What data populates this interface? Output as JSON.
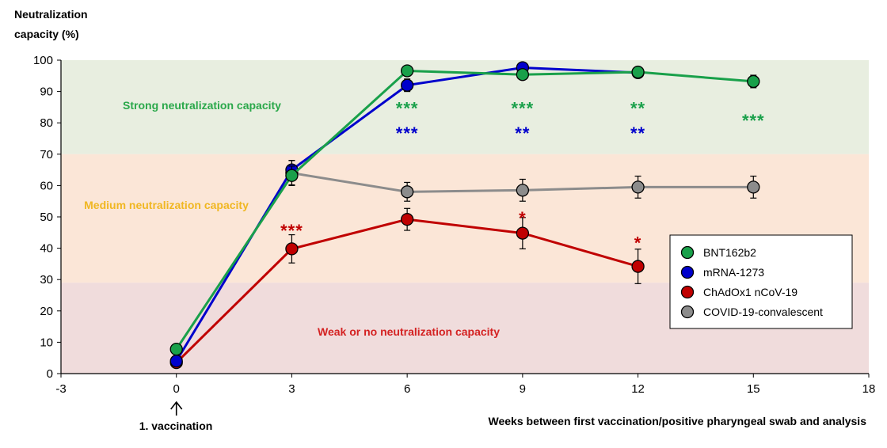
{
  "chart_data": {
    "type": "line",
    "ylabel_lines": [
      "Neutralization",
      "capacity (%)"
    ],
    "xlabel": "Weeks between first vaccination/positive pharyngeal swab and analysis",
    "xlim": [
      -3,
      18
    ],
    "ylim": [
      0,
      100
    ],
    "x_ticks": [
      -3,
      0,
      3,
      6,
      9,
      12,
      15,
      18
    ],
    "y_ticks": [
      0,
      10,
      20,
      30,
      40,
      50,
      60,
      70,
      80,
      90,
      100
    ],
    "grid": false,
    "legend_position": "right",
    "zones": [
      {
        "label": "Strong neutralization capacity",
        "y_from": 70,
        "y_to": 100,
        "fill": "#e8eee0",
        "text_color": "#2aa84a"
      },
      {
        "label": "Medium neutralization capacity",
        "y_from": 29,
        "y_to": 70,
        "fill": "#fbe6d7",
        "text_color": "#f0b722"
      },
      {
        "label": "Weak or no neutralization capacity",
        "y_from": 0,
        "y_to": 29,
        "fill": "#f0dcdc",
        "text_color": "#d42222"
      }
    ],
    "series": [
      {
        "name": "COVID-19-convalescent",
        "color": "#8c8c8c",
        "x": [
          3,
          6,
          9,
          12,
          15
        ],
        "y": [
          64,
          58,
          58.5,
          59.5,
          59.5
        ],
        "err": [
          4,
          3,
          3.5,
          3.5,
          3.5
        ]
      },
      {
        "name": "ChAdOx1 nCoV-19",
        "color": "#c00000",
        "x": [
          0,
          3,
          6,
          9,
          12
        ],
        "y": [
          3.5,
          39.8,
          49.2,
          44.8,
          34.2
        ],
        "err": [
          0,
          4.5,
          3.5,
          5,
          5.5
        ]
      },
      {
        "name": "mRNA-1273",
        "color": "#0000cc",
        "x": [
          0,
          3,
          6,
          9,
          12
        ],
        "y": [
          4,
          65,
          92,
          97.6,
          96
        ],
        "err": [
          0,
          3,
          2,
          0,
          0
        ]
      },
      {
        "name": "BNT162b2",
        "color": "#19a04a",
        "x": [
          0,
          3,
          6,
          9,
          12,
          15
        ],
        "y": [
          7.8,
          63.2,
          96.6,
          95.4,
          96.2,
          93.2
        ],
        "err": [
          0,
          3,
          0,
          0,
          0,
          2
        ]
      }
    ],
    "legend_order": [
      "BNT162b2",
      "mRNA-1273",
      "ChAdOx1 nCoV-19",
      "COVID-19-convalescent"
    ],
    "significance": [
      {
        "x": 6,
        "y": 85,
        "text": "***",
        "color": "#19a04a"
      },
      {
        "x": 6,
        "y": 77,
        "text": "***",
        "color": "#0000cc"
      },
      {
        "x": 9,
        "y": 85,
        "text": "***",
        "color": "#19a04a"
      },
      {
        "x": 9,
        "y": 77,
        "text": "**",
        "color": "#0000cc"
      },
      {
        "x": 12,
        "y": 85,
        "text": "**",
        "color": "#19a04a"
      },
      {
        "x": 12,
        "y": 77,
        "text": "**",
        "color": "#0000cc"
      },
      {
        "x": 15,
        "y": 81,
        "text": "***",
        "color": "#19a04a"
      },
      {
        "x": 3,
        "y": 46,
        "text": "***",
        "color": "#c00000"
      },
      {
        "x": 9,
        "y": 50,
        "text": "*",
        "color": "#c00000"
      },
      {
        "x": 12,
        "y": 42,
        "text": "*",
        "color": "#c00000"
      }
    ],
    "annotation": {
      "text": "1. vaccination",
      "x": 0
    }
  }
}
